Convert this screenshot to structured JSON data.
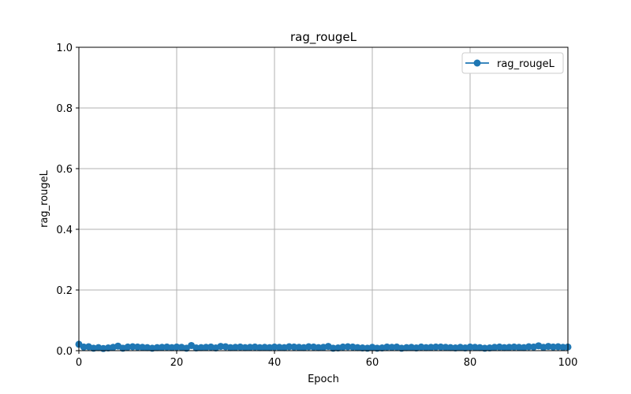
{
  "chart_data": {
    "type": "line",
    "title": "rag_rougeL",
    "xlabel": "Epoch",
    "ylabel": "rag_rougeL",
    "xlim": [
      0,
      100
    ],
    "ylim": [
      0,
      1.0
    ],
    "xticks": [
      "0",
      "20",
      "40",
      "60",
      "80",
      "100"
    ],
    "yticks": [
      "0.0",
      "0.2",
      "0.4",
      "0.6",
      "0.8",
      "1.0"
    ],
    "grid": true,
    "legend_position": "top-right",
    "colors": {
      "series": "#1f77b4",
      "grid": "#b0b0b0"
    },
    "series": [
      {
        "name": "rag_rougeL",
        "marker": "circle",
        "x": [
          0,
          1,
          2,
          3,
          4,
          5,
          6,
          7,
          8,
          9,
          10,
          11,
          12,
          13,
          14,
          15,
          16,
          17,
          18,
          19,
          20,
          21,
          22,
          23,
          24,
          25,
          26,
          27,
          28,
          29,
          30,
          31,
          32,
          33,
          34,
          35,
          36,
          37,
          38,
          39,
          40,
          41,
          42,
          43,
          44,
          45,
          46,
          47,
          48,
          49,
          50,
          51,
          52,
          53,
          54,
          55,
          56,
          57,
          58,
          59,
          60,
          61,
          62,
          63,
          64,
          65,
          66,
          67,
          68,
          69,
          70,
          71,
          72,
          73,
          74,
          75,
          76,
          77,
          78,
          79,
          80,
          81,
          82,
          83,
          84,
          85,
          86,
          87,
          88,
          89,
          90,
          91,
          92,
          93,
          94,
          95,
          96,
          97,
          98,
          99,
          100
        ],
        "y": [
          0.021,
          0.012,
          0.013,
          0.008,
          0.01,
          0.007,
          0.009,
          0.011,
          0.015,
          0.008,
          0.012,
          0.013,
          0.012,
          0.011,
          0.01,
          0.008,
          0.01,
          0.011,
          0.012,
          0.01,
          0.012,
          0.011,
          0.008,
          0.017,
          0.009,
          0.01,
          0.011,
          0.012,
          0.009,
          0.014,
          0.013,
          0.01,
          0.011,
          0.012,
          0.01,
          0.011,
          0.012,
          0.01,
          0.011,
          0.01,
          0.012,
          0.011,
          0.01,
          0.013,
          0.012,
          0.011,
          0.01,
          0.013,
          0.012,
          0.01,
          0.011,
          0.014,
          0.008,
          0.009,
          0.012,
          0.013,
          0.012,
          0.01,
          0.009,
          0.008,
          0.011,
          0.008,
          0.009,
          0.012,
          0.011,
          0.012,
          0.008,
          0.01,
          0.011,
          0.009,
          0.012,
          0.01,
          0.011,
          0.012,
          0.012,
          0.011,
          0.01,
          0.009,
          0.011,
          0.009,
          0.012,
          0.011,
          0.01,
          0.008,
          0.009,
          0.011,
          0.012,
          0.01,
          0.011,
          0.012,
          0.011,
          0.01,
          0.013,
          0.012,
          0.016,
          0.011,
          0.014,
          0.012,
          0.013,
          0.011,
          0.012
        ]
      }
    ]
  }
}
